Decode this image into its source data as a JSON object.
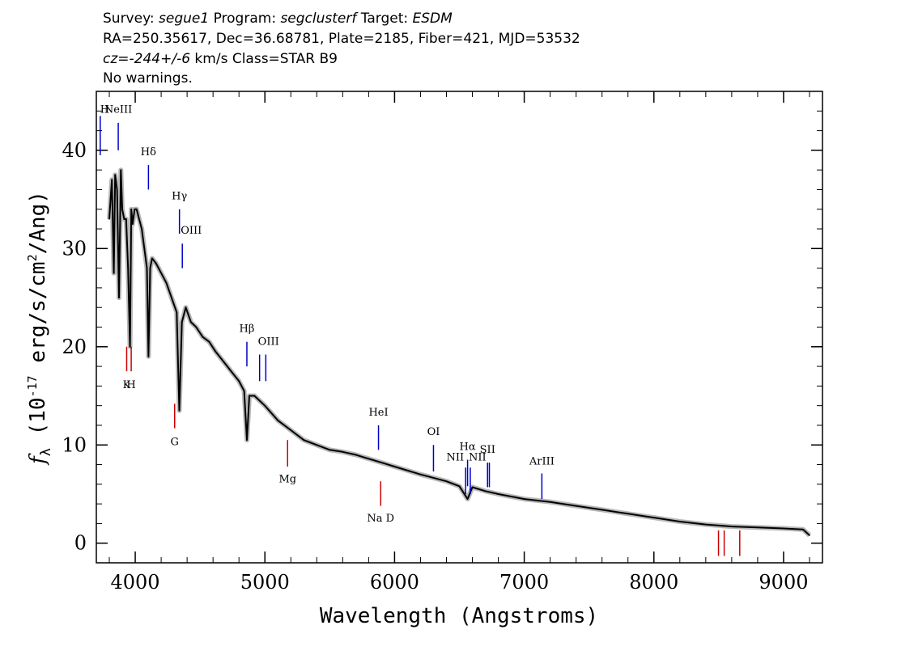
{
  "header": {
    "line1": [
      {
        "t": "Survey: ",
        "i": false
      },
      {
        "t": "segue1",
        "i": true
      },
      {
        "t": " Program: ",
        "i": false
      },
      {
        "t": "segclusterf",
        "i": true
      },
      {
        "t": " Target: ",
        "i": false
      },
      {
        "t": "ESDM",
        "i": true
      }
    ],
    "line2": "RA=250.35617, Dec=36.68781, Plate=2185, Fiber=421, MJD=53532",
    "line3": [
      {
        "t": "cz=-244+/-6",
        "i": true
      },
      {
        "t": " km/s Class=STAR B9",
        "i": false
      }
    ],
    "line4": "No warnings."
  },
  "chart_data": {
    "type": "line",
    "xlabel": "Wavelength (Angstroms)",
    "ylabel_parts": {
      "f": "f",
      "sub": "λ",
      "unit_a": " (10",
      "exp1": "-17",
      "unit_b": " erg/s/cm",
      "exp2": "2",
      "unit_c": "/Ang)"
    },
    "xlim": [
      3700,
      9300
    ],
    "ylim": [
      -2,
      46
    ],
    "xticks": [
      4000,
      5000,
      6000,
      7000,
      8000,
      9000
    ],
    "yticks": [
      0,
      10,
      20,
      30,
      40
    ],
    "series": [
      {
        "color": "#000000",
        "error_color": "#b8b8b8",
        "x": [
          3800,
          3820,
          3835,
          3845,
          3860,
          3875,
          3889,
          3900,
          3915,
          3930,
          3945,
          3960,
          3970,
          3980,
          3995,
          4010,
          4030,
          4050,
          4070,
          4090,
          4102,
          4115,
          4130,
          4160,
          4200,
          4240,
          4280,
          4320,
          4340,
          4360,
          4390,
          4430,
          4470,
          4520,
          4570,
          4620,
          4680,
          4740,
          4800,
          4840,
          4861,
          4880,
          4920,
          4960,
          5000,
          5100,
          5200,
          5300,
          5400,
          5500,
          5600,
          5700,
          5800,
          5900,
          6000,
          6200,
          6400,
          6500,
          6563,
          6600,
          6700,
          6800,
          7000,
          7200,
          7400,
          7600,
          7800,
          8000,
          8200,
          8400,
          8600,
          8800,
          9000,
          9150,
          9200
        ],
        "y": [
          33,
          37,
          27.5,
          37.5,
          36,
          25,
          38,
          34,
          33,
          33,
          28,
          20,
          34,
          32.5,
          34,
          34,
          33,
          32,
          30,
          28,
          19,
          28,
          29,
          28.5,
          27.5,
          26.5,
          25,
          23.5,
          13.5,
          22.5,
          24,
          22.5,
          22,
          21,
          20.5,
          19.5,
          18.5,
          17.5,
          16.5,
          15.5,
          10.5,
          15,
          15,
          14.5,
          14,
          12.5,
          11.5,
          10.5,
          10,
          9.5,
          9.3,
          9,
          8.6,
          8.2,
          7.8,
          7,
          6.3,
          5.8,
          4.5,
          5.7,
          5.3,
          5,
          4.5,
          4.2,
          3.8,
          3.4,
          3,
          2.6,
          2.2,
          1.9,
          1.7,
          1.6,
          1.5,
          1.4,
          0.8
        ]
      }
    ],
    "lines": [
      {
        "label": "H",
        "x": 3730,
        "color": "#0000cc",
        "y1": 39.5,
        "y2": 43.5,
        "ly": 43.8,
        "anchor": "start"
      },
      {
        "label": "NeIII",
        "x": 3869,
        "color": "#0000cc",
        "y1": 40,
        "y2": 42.8,
        "ly": 43.8,
        "anchor": "middle"
      },
      {
        "label": "Hδ",
        "x": 4102,
        "color": "#0000cc",
        "y1": 36,
        "y2": 38.5,
        "ly": 39.5,
        "anchor": "middle"
      },
      {
        "label": "Hγ",
        "x": 4341,
        "color": "#0000cc",
        "y1": 31.5,
        "y2": 34,
        "ly": 35,
        "anchor": "middle"
      },
      {
        "label": "OIII",
        "x": 4363,
        "color": "#0000cc",
        "y1": 28,
        "y2": 30.5,
        "ly": 31.5,
        "anchor": "start"
      },
      {
        "label": "Hβ",
        "x": 4861,
        "color": "#0000cc",
        "y1": 18,
        "y2": 20.5,
        "ly": 21.5,
        "anchor": "middle"
      },
      {
        "label": "OIII",
        "x": 4959,
        "color": "#0000cc",
        "y1": 16.5,
        "y2": 19.2,
        "ly": 20.2,
        "anchor": "start"
      },
      {
        "label": "",
        "x": 5007,
        "color": "#0000cc",
        "y1": 16.5,
        "y2": 19.2,
        "ly": 0,
        "anchor": "start"
      },
      {
        "label": "HeI",
        "x": 5876,
        "color": "#0000cc",
        "y1": 9.5,
        "y2": 12,
        "ly": 13,
        "anchor": "middle"
      },
      {
        "label": "OI",
        "x": 6300,
        "color": "#0000cc",
        "y1": 7.3,
        "y2": 10,
        "ly": 11,
        "anchor": "middle"
      },
      {
        "label": "NII",
        "x": 6548,
        "color": "#0000cc",
        "y1": 5,
        "y2": 7.7,
        "ly": 8.4,
        "anchor": "end"
      },
      {
        "label": "Hα",
        "x": 6563,
        "color": "#0000cc",
        "y1": 5.8,
        "y2": 8.5,
        "ly": 9.5,
        "anchor": "middle"
      },
      {
        "label": "NII",
        "x": 6584,
        "color": "#0000cc",
        "y1": 5,
        "y2": 7.7,
        "ly": 8.4,
        "anchor": "start"
      },
      {
        "label": "SII",
        "x": 6717,
        "color": "#0000cc",
        "y1": 5.7,
        "y2": 8.2,
        "ly": 9.2,
        "anchor": "middle"
      },
      {
        "label": "",
        "x": 6731,
        "color": "#0000cc",
        "y1": 5.7,
        "y2": 8.2,
        "ly": 0,
        "anchor": "middle"
      },
      {
        "label": "ArIII",
        "x": 7136,
        "color": "#0000cc",
        "y1": 4.5,
        "y2": 7.1,
        "ly": 8,
        "anchor": "middle"
      },
      {
        "label": "K",
        "x": 3934,
        "color": "#cc0000",
        "y1": 17.5,
        "y2": 20,
        "ly": 15.8,
        "anchor": "middle"
      },
      {
        "label": "H",
        "x": 3969,
        "color": "#cc0000",
        "y1": 17.5,
        "y2": 20,
        "ly": 15.8,
        "anchor": "middle"
      },
      {
        "label": "G",
        "x": 4304,
        "color": "#cc0000",
        "y1": 11.7,
        "y2": 14.2,
        "ly": 10,
        "anchor": "middle"
      },
      {
        "label": "Mg",
        "x": 5175,
        "color": "#cc0000",
        "y1": 7.8,
        "y2": 10.5,
        "ly": 6.2,
        "anchor": "middle"
      },
      {
        "label": "Na  D",
        "x": 5893,
        "color": "#cc0000",
        "y1": 3.8,
        "y2": 6.3,
        "ly": 2.2,
        "anchor": "middle"
      },
      {
        "label": "",
        "x": 8498,
        "color": "#cc0000",
        "y1": -1.3,
        "y2": 1.3,
        "ly": 0,
        "anchor": "middle"
      },
      {
        "label": "",
        "x": 8542,
        "color": "#cc0000",
        "y1": -1.3,
        "y2": 1.3,
        "ly": 0,
        "anchor": "middle"
      },
      {
        "label": "",
        "x": 8662,
        "color": "#cc0000",
        "y1": -1.3,
        "y2": 1.3,
        "ly": 0,
        "anchor": "middle"
      }
    ]
  }
}
